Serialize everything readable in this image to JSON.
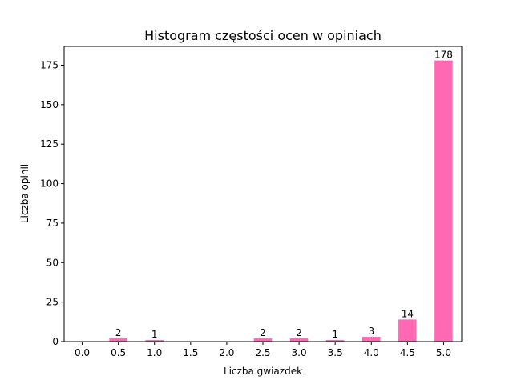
{
  "chart_data": {
    "type": "bar",
    "title": "Histogram częstości ocen w opiniach",
    "xlabel": "Liczba gwiazdek",
    "ylabel": "Liczba opinii",
    "categories": [
      "0.0",
      "0.5",
      "1.0",
      "1.5",
      "2.0",
      "2.5",
      "3.0",
      "3.5",
      "4.0",
      "4.5",
      "5.0"
    ],
    "values": [
      0,
      2,
      1,
      0,
      0,
      2,
      2,
      1,
      3,
      14,
      178
    ],
    "data_labels": [
      "",
      "2",
      "1",
      "",
      "",
      "2",
      "2",
      "1",
      "3",
      "14",
      "178"
    ],
    "yticks": [
      0,
      25,
      50,
      75,
      100,
      125,
      150,
      175
    ],
    "ylim": [
      0,
      186.9
    ],
    "bar_color": "#ff69b4",
    "grid": false,
    "legend": "none"
  }
}
